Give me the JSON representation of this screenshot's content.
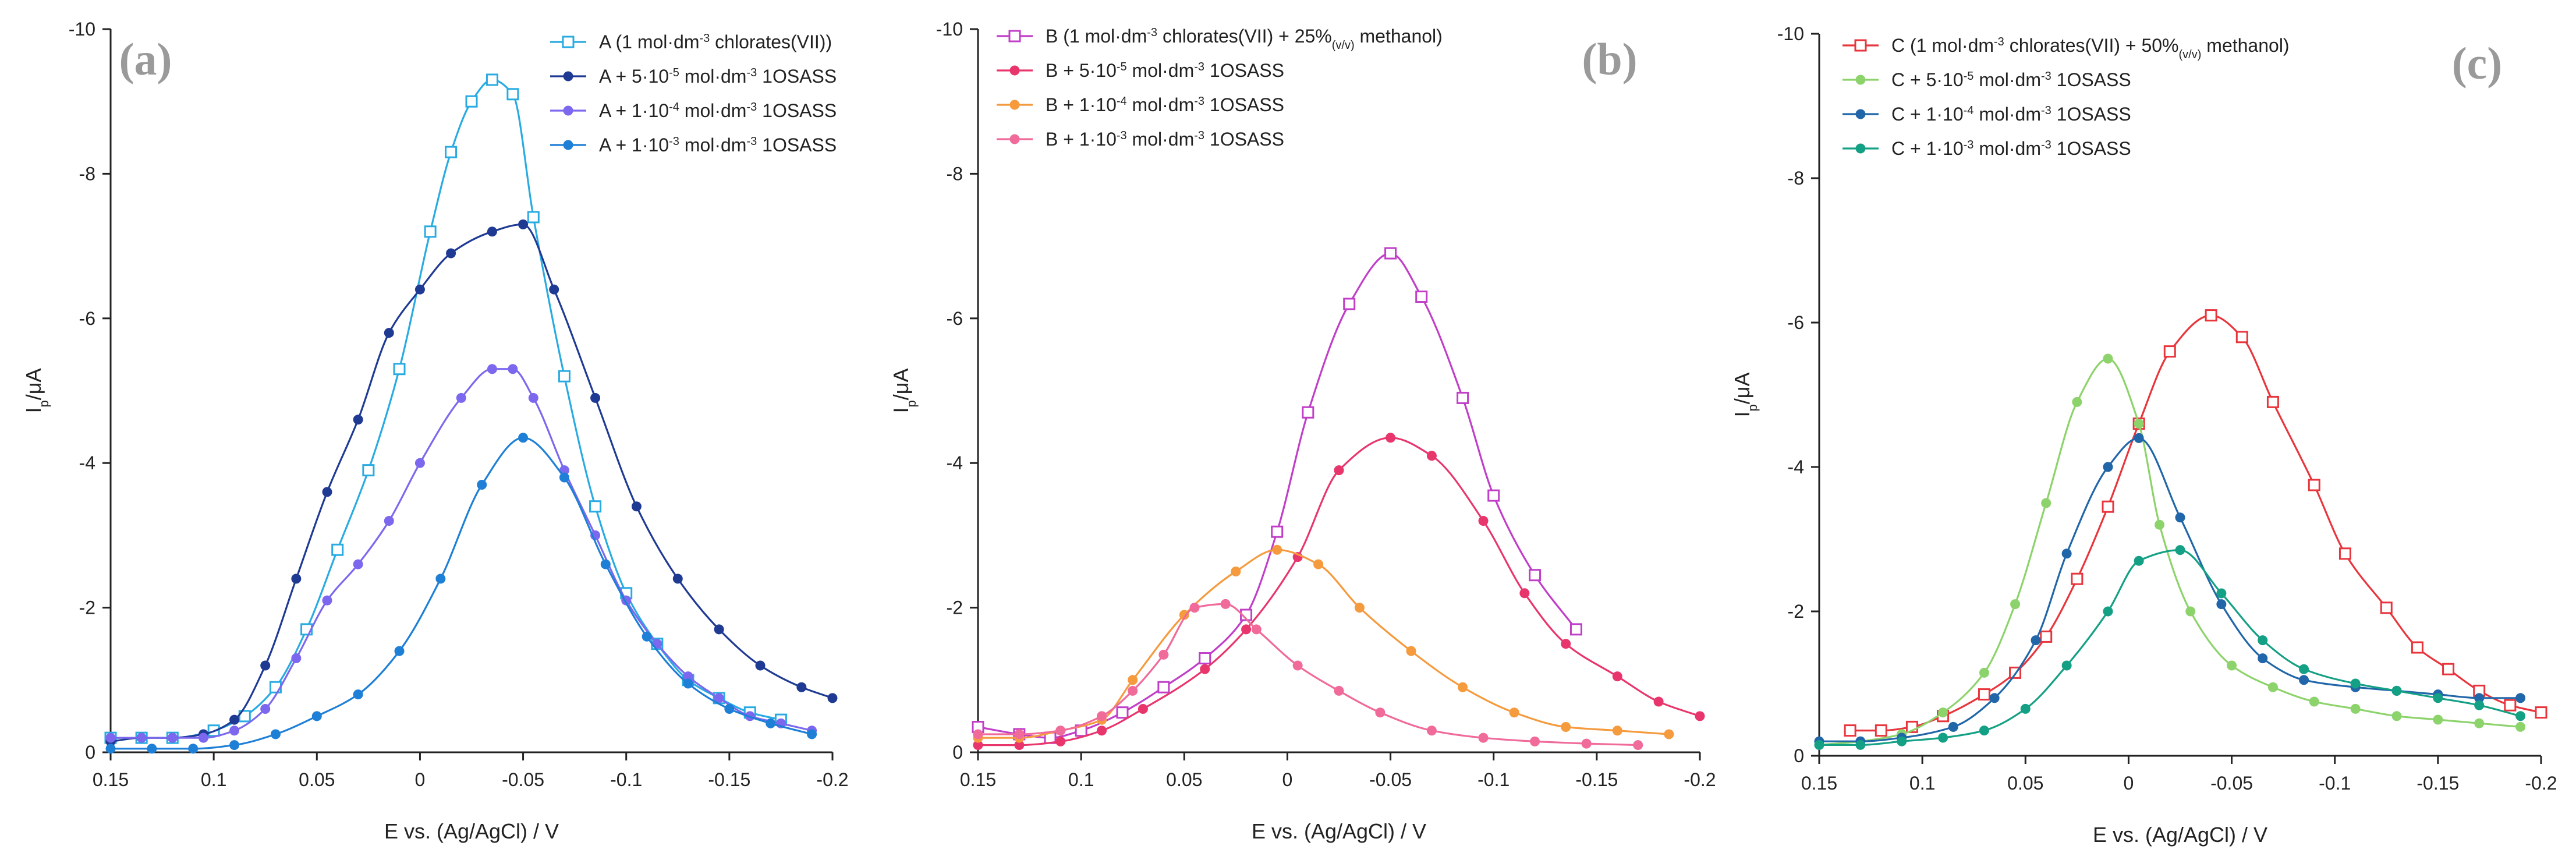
{
  "chart_data": [
    {
      "type": "line",
      "panel": "(a)",
      "title": "",
      "xlabel": "E vs. (Ag/AgCl) / V",
      "ylabel": "Ip/μA",
      "ylabel_main": "I",
      "ylabel_sub": "p",
      "ylabel_rest": "/μA",
      "xlim": [
        0.15,
        -0.2
      ],
      "ylim": [
        0,
        -10
      ],
      "xticks": [
        0.15,
        0.1,
        0.05,
        0,
        -0.05,
        -0.1,
        -0.15,
        -0.2
      ],
      "xtick_labels": [
        "0.15",
        "0.1",
        "0.05",
        "0",
        "-0.05",
        "-0.1",
        "-0.15",
        "-0.2"
      ],
      "yticks": [
        0,
        -2,
        -4,
        -6,
        -8,
        -10
      ],
      "ytick_labels": [
        "0",
        "-2",
        "-4",
        "-6",
        "-8",
        "-10"
      ],
      "grid": false,
      "legend_position": "top-right",
      "series": [
        {
          "name": "A (1 mol·dm-3 chlorates(VII))",
          "legend_parts": [
            [
              "A (1 mol·dm",
              ""
            ],
            [
              "-3",
              "sup"
            ],
            [
              " chlorates(VII))",
              ""
            ]
          ],
          "color": "#29abe2",
          "marker": "open-square",
          "x": [
            0.15,
            0.135,
            0.12,
            0.1,
            0.085,
            0.07,
            0.055,
            0.04,
            0.025,
            0.01,
            -0.005,
            -0.015,
            -0.025,
            -0.035,
            -0.045,
            -0.055,
            -0.07,
            -0.085,
            -0.1,
            -0.115,
            -0.13,
            -0.145,
            -0.16,
            -0.175
          ],
          "y": [
            -0.2,
            -0.2,
            -0.2,
            -0.3,
            -0.5,
            -0.9,
            -1.7,
            -2.8,
            -3.9,
            -5.3,
            -7.2,
            -8.3,
            -9.0,
            -9.3,
            -9.1,
            -7.4,
            -5.2,
            -3.4,
            -2.2,
            -1.5,
            -1.0,
            -0.75,
            -0.55,
            -0.45
          ]
        },
        {
          "name": "A + 5·10-5 mol·dm-3 1OSASS",
          "legend_parts": [
            [
              "A + 5·10",
              ""
            ],
            [
              "-5",
              "sup"
            ],
            [
              " mol·dm",
              ""
            ],
            [
              "-3",
              "sup"
            ],
            [
              " 1OSASS",
              ""
            ]
          ],
          "color": "#1f3a93",
          "marker": "filled-circle",
          "x": [
            0.15,
            0.135,
            0.12,
            0.105,
            0.09,
            0.075,
            0.06,
            0.045,
            0.03,
            0.015,
            0.0,
            -0.015,
            -0.035,
            -0.05,
            -0.065,
            -0.085,
            -0.105,
            -0.125,
            -0.145,
            -0.165,
            -0.185,
            -0.2
          ],
          "y": [
            -0.15,
            -0.2,
            -0.2,
            -0.25,
            -0.45,
            -1.2,
            -2.4,
            -3.6,
            -4.6,
            -5.8,
            -6.4,
            -6.9,
            -7.2,
            -7.3,
            -6.4,
            -4.9,
            -3.4,
            -2.4,
            -1.7,
            -1.2,
            -0.9,
            -0.75
          ]
        },
        {
          "name": "A + 1·10-4 mol·dm-3 1OSASS",
          "legend_parts": [
            [
              "A + 1·10",
              ""
            ],
            [
              "-4",
              "sup"
            ],
            [
              " mol·dm",
              ""
            ],
            [
              "-3",
              "sup"
            ],
            [
              " 1OSASS",
              ""
            ]
          ],
          "color": "#7b68ee",
          "marker": "filled-circle",
          "x": [
            0.15,
            0.135,
            0.12,
            0.105,
            0.09,
            0.075,
            0.06,
            0.045,
            0.03,
            0.015,
            0.0,
            -0.02,
            -0.035,
            -0.045,
            -0.055,
            -0.07,
            -0.085,
            -0.1,
            -0.115,
            -0.13,
            -0.145,
            -0.16,
            -0.175,
            -0.19
          ],
          "y": [
            -0.2,
            -0.2,
            -0.2,
            -0.2,
            -0.3,
            -0.6,
            -1.3,
            -2.1,
            -2.6,
            -3.2,
            -4.0,
            -4.9,
            -5.3,
            -5.3,
            -4.9,
            -3.9,
            -3.0,
            -2.1,
            -1.5,
            -1.05,
            -0.75,
            -0.5,
            -0.4,
            -0.3
          ]
        },
        {
          "name": "A + 1·10-3 mol·dm-3 1OSASS",
          "legend_parts": [
            [
              "A + 1·10",
              ""
            ],
            [
              "-3",
              "sup"
            ],
            [
              " mol·dm",
              ""
            ],
            [
              "-3",
              "sup"
            ],
            [
              " 1OSASS",
              ""
            ]
          ],
          "color": "#1e7fd6",
          "marker": "filled-circle",
          "x": [
            0.15,
            0.13,
            0.11,
            0.09,
            0.07,
            0.05,
            0.03,
            0.01,
            -0.01,
            -0.03,
            -0.05,
            -0.07,
            -0.09,
            -0.11,
            -0.13,
            -0.15,
            -0.17,
            -0.19
          ],
          "y": [
            -0.05,
            -0.05,
            -0.05,
            -0.1,
            -0.25,
            -0.5,
            -0.8,
            -1.4,
            -2.4,
            -3.7,
            -4.35,
            -3.8,
            -2.6,
            -1.6,
            -0.95,
            -0.6,
            -0.4,
            -0.25
          ]
        }
      ]
    },
    {
      "type": "line",
      "panel": "(b)",
      "title": "",
      "xlabel": "E vs. (Ag/AgCl) / V",
      "ylabel": "Ip/μA",
      "ylabel_main": "I",
      "ylabel_sub": "p",
      "ylabel_rest": "/μA",
      "xlim": [
        0.15,
        -0.2
      ],
      "ylim": [
        0,
        -10
      ],
      "xticks": [
        0.15,
        0.1,
        0.05,
        0,
        -0.05,
        -0.1,
        -0.15,
        -0.2
      ],
      "xtick_labels": [
        "0.15",
        "0.1",
        "0.05",
        "0",
        "-0.05",
        "-0.1",
        "-0.15",
        "-0.2"
      ],
      "yticks": [
        0,
        -2,
        -4,
        -6,
        -8,
        -10
      ],
      "ytick_labels": [
        "0",
        "-2",
        "-4",
        "-6",
        "-8",
        "-10"
      ],
      "grid": false,
      "legend_position": "top-left",
      "series": [
        {
          "name": "B (1 mol·dm-3 chlorates(VII) + 25%(v/v) methanol)",
          "legend_parts": [
            [
              "B (1 mol·dm",
              ""
            ],
            [
              "-3",
              "sup"
            ],
            [
              " chlorates(VII) + 25%",
              ""
            ],
            [
              "(v/v)",
              "sub"
            ],
            [
              " methanol)",
              ""
            ]
          ],
          "color": "#c03ec8",
          "marker": "open-square",
          "x": [
            0.15,
            0.13,
            0.115,
            0.1,
            0.08,
            0.06,
            0.04,
            0.02,
            0.005,
            -0.01,
            -0.03,
            -0.05,
            -0.065,
            -0.085,
            -0.1,
            -0.12,
            -0.14
          ],
          "y": [
            -0.35,
            -0.25,
            -0.2,
            -0.3,
            -0.55,
            -0.9,
            -1.3,
            -1.9,
            -3.05,
            -4.7,
            -6.2,
            -6.9,
            -6.3,
            -4.9,
            -3.55,
            -2.45,
            -1.7
          ]
        },
        {
          "name": "B + 5·10-5 mol·dm-3 1OSASS",
          "legend_parts": [
            [
              "B + 5·10",
              ""
            ],
            [
              "-5",
              "sup"
            ],
            [
              " mol·dm",
              ""
            ],
            [
              "-3",
              "sup"
            ],
            [
              " 1OSASS",
              ""
            ]
          ],
          "color": "#e8366d",
          "marker": "filled-circle",
          "x": [
            0.15,
            0.13,
            0.11,
            0.09,
            0.07,
            0.04,
            0.02,
            -0.005,
            -0.025,
            -0.05,
            -0.07,
            -0.095,
            -0.115,
            -0.135,
            -0.16,
            -0.18,
            -0.2
          ],
          "y": [
            -0.1,
            -0.1,
            -0.15,
            -0.3,
            -0.6,
            -1.15,
            -1.7,
            -2.7,
            -3.9,
            -4.35,
            -4.1,
            -3.2,
            -2.2,
            -1.5,
            -1.05,
            -0.7,
            -0.5
          ]
        },
        {
          "name": "B + 1·10-4 mol·dm-3 1OSASS",
          "legend_parts": [
            [
              "B + 1·10",
              ""
            ],
            [
              "-4",
              "sup"
            ],
            [
              " mol·dm",
              ""
            ],
            [
              "-3",
              "sup"
            ],
            [
              " 1OSASS",
              ""
            ]
          ],
          "color": "#f59a3d",
          "marker": "filled-circle",
          "x": [
            0.15,
            0.13,
            0.11,
            0.09,
            0.075,
            0.05,
            0.025,
            0.005,
            -0.015,
            -0.035,
            -0.06,
            -0.085,
            -0.11,
            -0.135,
            -0.16,
            -0.185
          ],
          "y": [
            -0.2,
            -0.2,
            -0.3,
            -0.45,
            -1.0,
            -1.9,
            -2.5,
            -2.8,
            -2.6,
            -2.0,
            -1.4,
            -0.9,
            -0.55,
            -0.35,
            -0.3,
            -0.25
          ]
        },
        {
          "name": "B + 1·10-3 mol·dm-3 1OSASS",
          "legend_parts": [
            [
              "B + 1·10",
              ""
            ],
            [
              "-3",
              "sup"
            ],
            [
              " mol·dm",
              ""
            ],
            [
              "-3",
              "sup"
            ],
            [
              " 1OSASS",
              ""
            ]
          ],
          "color": "#f06a9a",
          "marker": "filled-circle",
          "x": [
            0.15,
            0.13,
            0.11,
            0.09,
            0.075,
            0.06,
            0.045,
            0.03,
            0.015,
            -0.005,
            -0.025,
            -0.045,
            -0.07,
            -0.095,
            -0.12,
            -0.145,
            -0.17
          ],
          "y": [
            -0.25,
            -0.25,
            -0.3,
            -0.5,
            -0.85,
            -1.35,
            -2.0,
            -2.05,
            -1.7,
            -1.2,
            -0.85,
            -0.55,
            -0.3,
            -0.2,
            -0.15,
            -0.12,
            -0.1
          ]
        }
      ]
    },
    {
      "type": "line",
      "panel": "(c)",
      "title": "",
      "xlabel": "E vs. (Ag/AgCl) / V",
      "ylabel": "Ip/μA",
      "ylabel_main": "I",
      "ylabel_sub": "p",
      "ylabel_rest": "/μA",
      "xlim": [
        0.15,
        -0.2
      ],
      "ylim": [
        0,
        -10
      ],
      "xticks": [
        0.15,
        0.1,
        0.05,
        0,
        -0.05,
        -0.1,
        -0.15,
        -0.2
      ],
      "xtick_labels": [
        "0.15",
        "0.1",
        "0.05",
        "0",
        "-0.05",
        "-0.1",
        "-0.15",
        "-0.2"
      ],
      "yticks": [
        0,
        -2,
        -4,
        -6,
        -8,
        -10
      ],
      "ytick_labels": [
        "0",
        "-2",
        "-4",
        "-6",
        "-8",
        "-10"
      ],
      "grid": false,
      "legend_position": "top-left",
      "series": [
        {
          "name": "C (1 mol·dm-3 chlorates(VII) + 50%(v/v) methanol)",
          "legend_parts": [
            [
              "C (1 mol·dm",
              ""
            ],
            [
              "-3",
              "sup"
            ],
            [
              " chlorates(VII) + 50%",
              ""
            ],
            [
              "(v/v)",
              "sub"
            ],
            [
              " methanol)",
              ""
            ]
          ],
          "color": "#e8353c",
          "marker": "open-square",
          "x": [
            0.135,
            0.12,
            0.105,
            0.09,
            0.07,
            0.055,
            0.04,
            0.025,
            0.01,
            -0.005,
            -0.02,
            -0.04,
            -0.055,
            -0.07,
            -0.09,
            -0.105,
            -0.125,
            -0.14,
            -0.155,
            -0.17,
            -0.185,
            -0.2
          ],
          "y": [
            -0.35,
            -0.35,
            -0.4,
            -0.55,
            -0.85,
            -1.15,
            -1.65,
            -2.45,
            -3.45,
            -4.6,
            -5.6,
            -6.1,
            -5.8,
            -4.9,
            -3.75,
            -2.8,
            -2.05,
            -1.5,
            -1.2,
            -0.9,
            -0.7,
            -0.6
          ]
        },
        {
          "name": "C + 5·10-5 mol·dm-3 1OSASS",
          "legend_parts": [
            [
              "C + 5·10",
              ""
            ],
            [
              "-5",
              "sup"
            ],
            [
              " mol·dm",
              ""
            ],
            [
              "-3",
              "sup"
            ],
            [
              " 1OSASS",
              ""
            ]
          ],
          "color": "#8dd36b",
          "marker": "filled-circle",
          "x": [
            0.15,
            0.13,
            0.11,
            0.09,
            0.07,
            0.055,
            0.04,
            0.025,
            0.01,
            -0.005,
            -0.015,
            -0.03,
            -0.05,
            -0.07,
            -0.09,
            -0.11,
            -0.13,
            -0.15,
            -0.17,
            -0.19
          ],
          "y": [
            -0.15,
            -0.2,
            -0.3,
            -0.6,
            -1.15,
            -2.1,
            -3.5,
            -4.9,
            -5.5,
            -4.6,
            -3.2,
            -2.0,
            -1.25,
            -0.95,
            -0.75,
            -0.65,
            -0.55,
            -0.5,
            -0.45,
            -0.4
          ]
        },
        {
          "name": "C + 1·10-4 mol·dm-3 1OSASS",
          "legend_parts": [
            [
              "C + 1·10",
              ""
            ],
            [
              "-4",
              "sup"
            ],
            [
              " mol·dm",
              ""
            ],
            [
              "-3",
              "sup"
            ],
            [
              " 1OSASS",
              ""
            ]
          ],
          "color": "#2066a8",
          "marker": "filled-circle",
          "x": [
            0.15,
            0.13,
            0.11,
            0.085,
            0.065,
            0.045,
            0.03,
            0.01,
            -0.005,
            -0.025,
            -0.045,
            -0.065,
            -0.085,
            -0.11,
            -0.13,
            -0.15,
            -0.17,
            -0.19
          ],
          "y": [
            -0.2,
            -0.2,
            -0.25,
            -0.4,
            -0.8,
            -1.6,
            -2.8,
            -4.0,
            -4.4,
            -3.3,
            -2.1,
            -1.35,
            -1.05,
            -0.95,
            -0.9,
            -0.85,
            -0.8,
            -0.8
          ]
        },
        {
          "name": "C + 1·10-3 mol·dm-3 1OSASS",
          "legend_parts": [
            [
              "C + 1·10",
              ""
            ],
            [
              "-3",
              "sup"
            ],
            [
              " mol·dm",
              ""
            ],
            [
              "-3",
              "sup"
            ],
            [
              " 1OSASS",
              ""
            ]
          ],
          "color": "#14a085",
          "marker": "filled-circle",
          "x": [
            0.15,
            0.13,
            0.11,
            0.09,
            0.07,
            0.05,
            0.03,
            0.01,
            -0.005,
            -0.025,
            -0.045,
            -0.065,
            -0.085,
            -0.11,
            -0.13,
            -0.15,
            -0.17,
            -0.19
          ],
          "y": [
            -0.15,
            -0.15,
            -0.2,
            -0.25,
            -0.35,
            -0.65,
            -1.25,
            -2.0,
            -2.7,
            -2.85,
            -2.25,
            -1.6,
            -1.2,
            -1.0,
            -0.9,
            -0.8,
            -0.7,
            -0.55
          ]
        }
      ]
    }
  ]
}
